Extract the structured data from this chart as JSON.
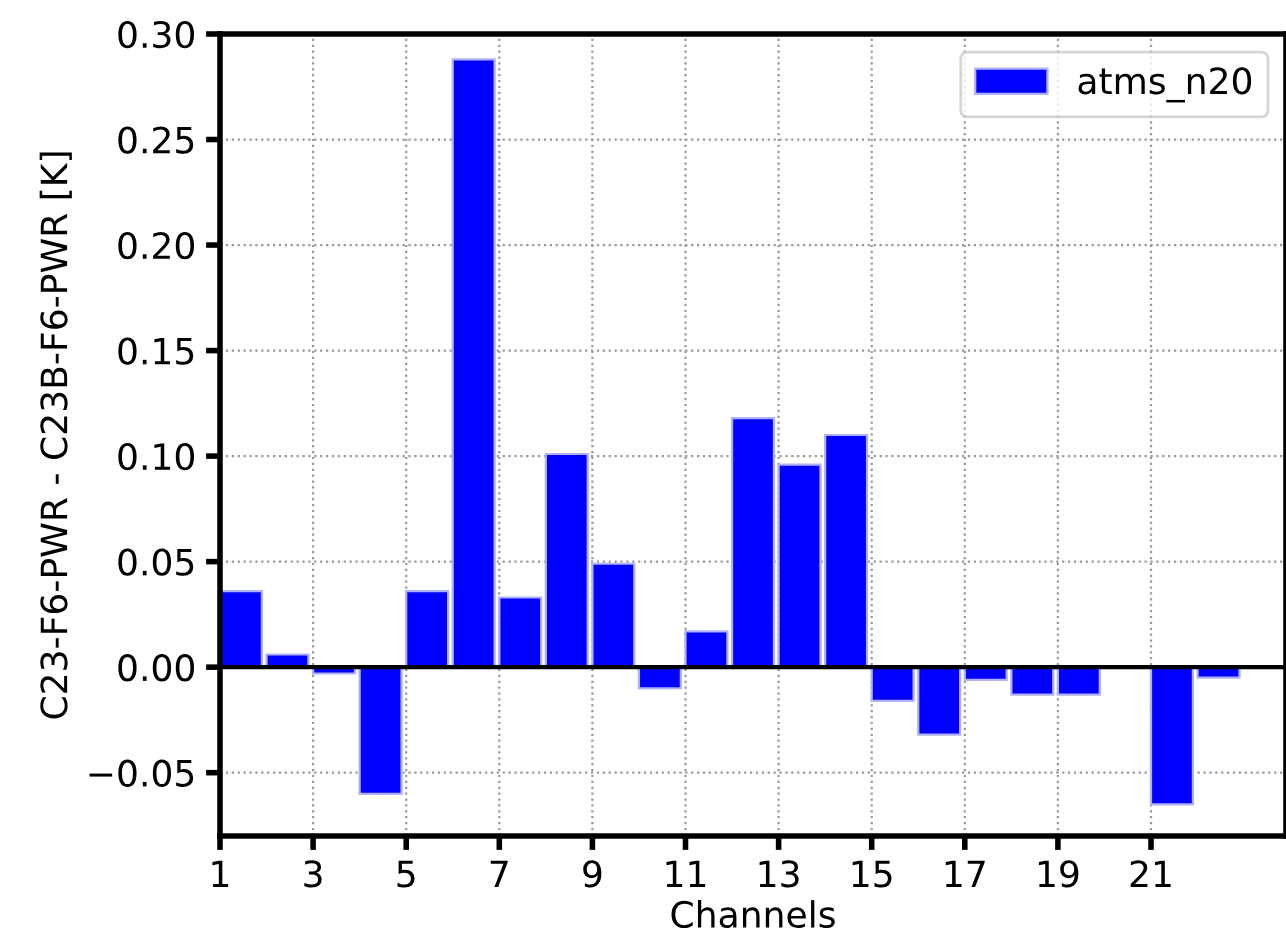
{
  "chart_data": {
    "type": "bar",
    "xlabel": "Channels",
    "ylabel": "C23-F6-PWR - C23B-F6-PWR [K]",
    "x": [
      1.45,
      2.45,
      3.45,
      4.45,
      5.45,
      6.45,
      7.45,
      8.45,
      9.45,
      10.45,
      11.45,
      12.45,
      13.45,
      14.45,
      15.45,
      16.45,
      17.45,
      18.45,
      19.45,
      20.45,
      21.45,
      22.45
    ],
    "series": [
      {
        "name": "atms_n20",
        "color": "#0000ff",
        "values": [
          0.036,
          0.006,
          -0.003,
          -0.06,
          0.036,
          0.288,
          0.033,
          0.101,
          0.049,
          -0.01,
          0.017,
          0.118,
          0.096,
          0.11,
          -0.016,
          -0.032,
          -0.006,
          -0.013,
          -0.013,
          null,
          -0.065,
          -0.005
        ]
      }
    ],
    "xlim": [
      1,
      23.9
    ],
    "xticks": [
      1,
      3,
      5,
      7,
      9,
      11,
      13,
      15,
      17,
      19,
      21
    ],
    "ylim": [
      -0.08,
      0.3
    ],
    "yticks": [
      {
        "value": -0.05,
        "label": "−0.05"
      },
      {
        "value": 0.0,
        "label": "0.00"
      },
      {
        "value": 0.05,
        "label": "0.05"
      },
      {
        "value": 0.1,
        "label": "0.10"
      },
      {
        "value": 0.15,
        "label": "0.15"
      },
      {
        "value": 0.2,
        "label": "0.20"
      },
      {
        "value": 0.25,
        "label": "0.25"
      },
      {
        "value": 0.3,
        "label": "0.30"
      }
    ],
    "ref_lines": [
      {
        "axis": "y",
        "value": 0,
        "color": "#000000"
      }
    ],
    "grid": true,
    "legend": "top right"
  }
}
